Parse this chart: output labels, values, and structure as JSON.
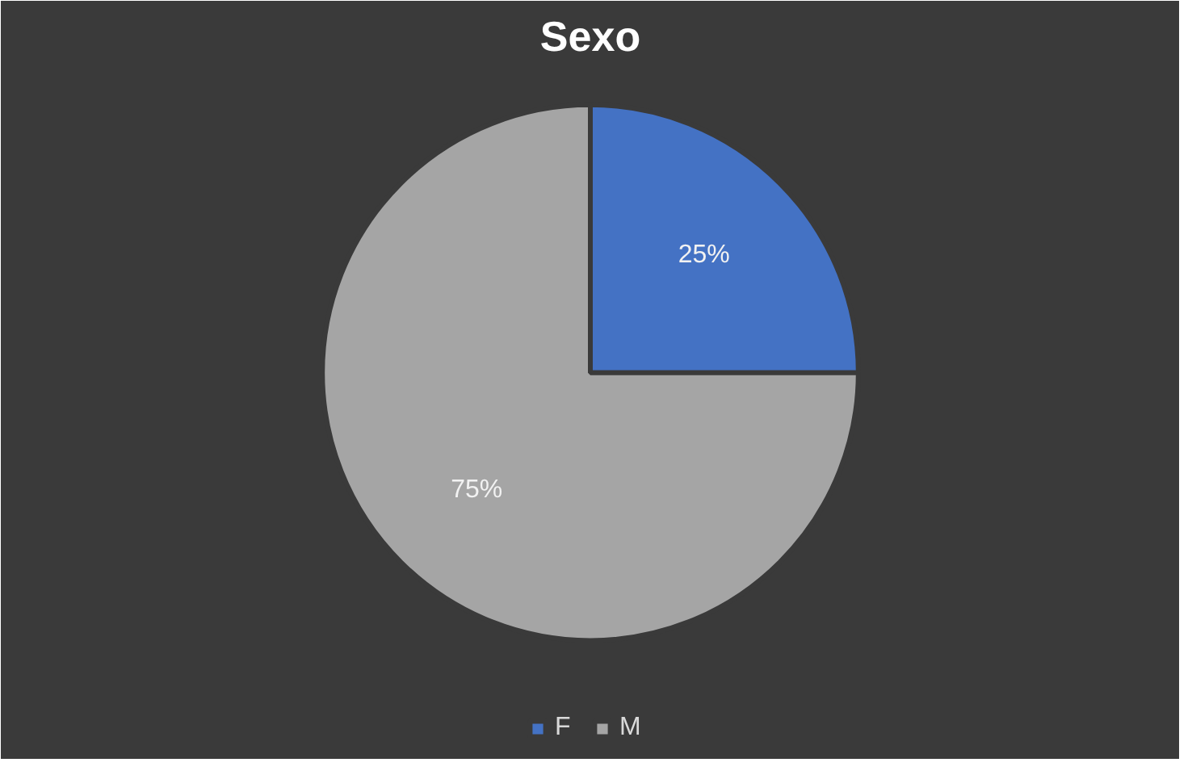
{
  "chart_data": {
    "type": "pie",
    "title": "Sexo",
    "categories": [
      "F",
      "M"
    ],
    "values": [
      25,
      75
    ],
    "colors": [
      "#4472c4",
      "#a5a5a5"
    ],
    "value_labels": [
      "25%",
      "75%"
    ],
    "legend": "bottom"
  }
}
